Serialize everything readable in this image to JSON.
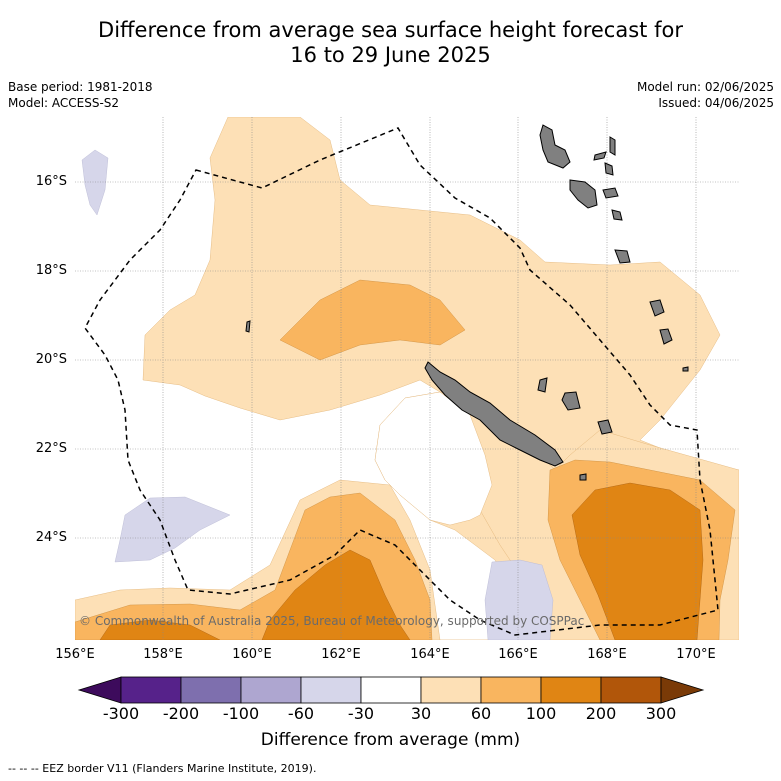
{
  "title_line1": "Difference from average sea surface height forecast for",
  "title_line2": "16 to 29 June 2025",
  "meta": {
    "base_period": "Base period: 1981-2018",
    "model": "Model: ACCESS-S2",
    "model_run": "Model run: 02/06/2025",
    "issued": "Issued: 04/06/2025"
  },
  "map": {
    "lat_labels": [
      "16°S",
      "18°S",
      "20°S",
      "22°S",
      "24°S"
    ],
    "lon_labels": [
      "156°E",
      "158°E",
      "160°E",
      "162°E",
      "164°E",
      "166°E",
      "168°E",
      "170°E"
    ],
    "copyright": "© Commonwealth of Australia 2025, Bureau of Meteorology, supported by COSPPac",
    "land_color": "#808080"
  },
  "colorbar": {
    "ticks": [
      "-300",
      "-200",
      "-100",
      "-60",
      "-30",
      "30",
      "60",
      "100",
      "200",
      "300"
    ],
    "colors": [
      "#3d0b5c",
      "#56228a",
      "#7e6fae",
      "#aea6d0",
      "#d6d6ea",
      "#ffffff",
      "#fde0b6",
      "#f9b55f",
      "#e08514",
      "#b1560a",
      "#7a3a07"
    ],
    "title": "Difference from average (mm)"
  },
  "footnote": "--  --  -- EEZ border V11 (Flanders Marine Institute, 2019)."
}
